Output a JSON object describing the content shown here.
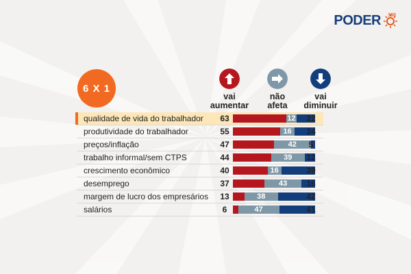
{
  "logo": {
    "word": "PODER",
    "sub": "360"
  },
  "badge": "6 X 1",
  "columns": [
    {
      "key": "up",
      "label_1": "vai",
      "label_2": "aumentar",
      "color": "#b5171f",
      "icon": "arrow-up-icon"
    },
    {
      "key": "mid",
      "label_1": "não",
      "label_2": "afeta",
      "color": "#7f98a8",
      "icon": "arrow-right-icon"
    },
    {
      "key": "down",
      "label_1": "vai",
      "label_2": "diminuir",
      "color": "#133e7c",
      "icon": "arrow-down-icon"
    }
  ],
  "highlight_index": 0,
  "chart_data": {
    "type": "bar",
    "stacked": true,
    "orientation": "horizontal",
    "categories": [
      "qualidade de vida do trabalhador",
      "produtividade do trabalhador",
      "preços/inflação",
      "trabalho informal/sem CTPS",
      "crescimento econômico",
      "desemprego",
      "margem de lucro dos empresários",
      "salários"
    ],
    "series": [
      {
        "name": "vai aumentar",
        "values": [
          63,
          55,
          47,
          44,
          40,
          37,
          13,
          6
        ]
      },
      {
        "name": "não afeta",
        "values": [
          12,
          16,
          42,
          39,
          16,
          43,
          38,
          47
        ]
      },
      {
        "name": "vai diminuir",
        "values": [
          22,
          24,
          5,
          12,
          39,
          16,
          42,
          41
        ]
      }
    ]
  }
}
